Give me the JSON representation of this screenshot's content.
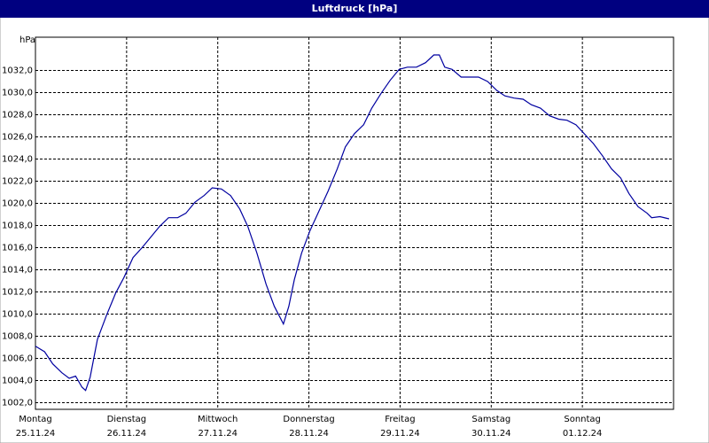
{
  "chart_data": {
    "type": "line",
    "title": "Luftdruck [hPa]",
    "y_label": "hPa",
    "xlim": [
      0,
      7
    ],
    "ylim": [
      1001.4,
      1035
    ],
    "xticks": [
      {
        "value": 0,
        "label": "Montag"
      },
      {
        "value": 1,
        "label": "Dienstag"
      },
      {
        "value": 2,
        "label": "Mittwoch"
      },
      {
        "value": 3,
        "label": "Donnerstag"
      },
      {
        "value": 4,
        "label": "Freitag"
      },
      {
        "value": 5,
        "label": "Samstag"
      },
      {
        "value": 6,
        "label": "Sonntag"
      }
    ],
    "xtick_dates": [
      "25.11.24",
      "26.11.24",
      "27.11.24",
      "28.11.24",
      "29.11.24",
      "30.11.24",
      "01.12.24"
    ],
    "yticks": [
      {
        "value": 1002,
        "label": "1002,0"
      },
      {
        "value": 1004,
        "label": "1004,0"
      },
      {
        "value": 1006,
        "label": "1006,0"
      },
      {
        "value": 1008,
        "label": "1008,0"
      },
      {
        "value": 1010,
        "label": "1010,0"
      },
      {
        "value": 1012,
        "label": "1012,0"
      },
      {
        "value": 1014,
        "label": "1014,0"
      },
      {
        "value": 1016,
        "label": "1016,0"
      },
      {
        "value": 1018,
        "label": "1018,0"
      },
      {
        "value": 1020,
        "label": "1020,0"
      },
      {
        "value": 1022,
        "label": "1022,0"
      },
      {
        "value": 1024,
        "label": "1024,0"
      },
      {
        "value": 1026,
        "label": "1026,0"
      },
      {
        "value": 1028,
        "label": "1028,0"
      },
      {
        "value": 1030,
        "label": "1030,0"
      },
      {
        "value": 1032,
        "label": "1032,0"
      }
    ],
    "grid": true,
    "series": [
      {
        "color": "#0000a0",
        "x": [
          0,
          0.1,
          0.19,
          0.29,
          0.37,
          0.44,
          0.51,
          0.55,
          0.6,
          0.68,
          0.78,
          0.88,
          0.97,
          1.07,
          1.17,
          1.26,
          1.36,
          1.46,
          1.56,
          1.65,
          1.75,
          1.85,
          1.94,
          2.04,
          2.14,
          2.24,
          2.33,
          2.43,
          2.53,
          2.62,
          2.72,
          2.78,
          2.84,
          2.92,
          3.01,
          3.11,
          3.21,
          3.31,
          3.4,
          3.5,
          3.6,
          3.69,
          3.79,
          3.89,
          3.99,
          4.08,
          4.18,
          4.28,
          4.37,
          4.43,
          4.49,
          4.57,
          4.67,
          4.76,
          4.86,
          4.96,
          5.06,
          5.15,
          5.25,
          5.35,
          5.44,
          5.54,
          5.64,
          5.74,
          5.83,
          5.93,
          6.03,
          6.12,
          6.22,
          6.32,
          6.42,
          6.51,
          6.61,
          6.71,
          6.76,
          6.85,
          6.95
        ],
        "values": [
          1007.1,
          1006.6,
          1005.5,
          1004.7,
          1004.2,
          1004.4,
          1003.4,
          1003.1,
          1004.3,
          1007.7,
          1009.9,
          1011.9,
          1013.3,
          1015.1,
          1016.0,
          1016.9,
          1017.9,
          1018.7,
          1018.7,
          1019.1,
          1020.1,
          1020.7,
          1021.4,
          1021.3,
          1020.7,
          1019.5,
          1017.9,
          1015.5,
          1012.7,
          1010.7,
          1009.1,
          1010.7,
          1013.1,
          1015.5,
          1017.5,
          1019.3,
          1021.1,
          1023.1,
          1025.1,
          1026.3,
          1027.1,
          1028.6,
          1029.9,
          1031.1,
          1032.1,
          1032.3,
          1032.3,
          1032.7,
          1033.4,
          1033.4,
          1032.3,
          1032.1,
          1031.4,
          1031.4,
          1031.4,
          1031.0,
          1030.2,
          1029.7,
          1029.5,
          1029.4,
          1028.9,
          1028.6,
          1027.9,
          1027.6,
          1027.5,
          1027.1,
          1026.2,
          1025.4,
          1024.3,
          1023.1,
          1022.3,
          1020.9,
          1019.7,
          1019.1,
          1018.7,
          1018.8,
          1018.6
        ]
      }
    ]
  }
}
